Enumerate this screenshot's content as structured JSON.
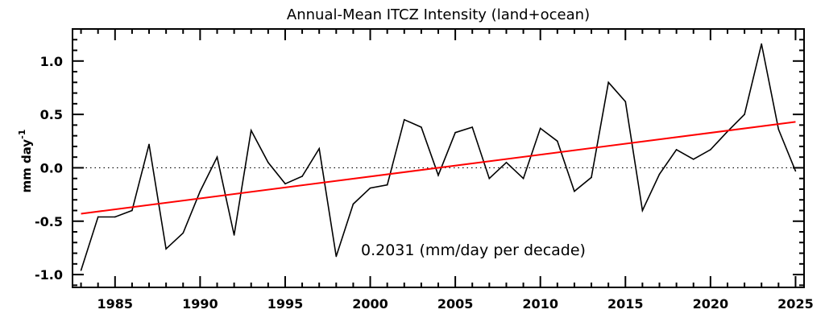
{
  "chart_data": {
    "type": "line",
    "title": "Annual-Mean ITCZ Intensity (land+ocean)",
    "xlabel": "",
    "ylabel": "mm day",
    "ylabel_superscript": "-1",
    "xlim": [
      1982.5,
      2025.5
    ],
    "ylim": [
      -1.12,
      1.3
    ],
    "xticks": [
      1985,
      1990,
      1995,
      2000,
      2005,
      2010,
      2015,
      2020,
      2025
    ],
    "yticks": [
      -1.0,
      -0.5,
      0.0,
      0.5,
      1.0
    ],
    "ytick_labels": [
      "-1.0",
      "-0.5",
      "0.0",
      "0.5",
      "1.0"
    ],
    "grid": false,
    "zero_line": "dotted",
    "x": [
      1983,
      1984,
      1985,
      1986,
      1987,
      1988,
      1989,
      1990,
      1991,
      1992,
      1993,
      1994,
      1995,
      1996,
      1997,
      1998,
      1999,
      2000,
      2001,
      2002,
      2003,
      2004,
      2005,
      2006,
      2007,
      2008,
      2009,
      2010,
      2011,
      2012,
      2013,
      2014,
      2015,
      2016,
      2017,
      2018,
      2019,
      2020,
      2021,
      2022,
      2023,
      2024,
      2025
    ],
    "series": [
      {
        "color": "#000000",
        "values": [
          -0.96,
          -0.46,
          -0.46,
          -0.4,
          0.22,
          -0.76,
          -0.61,
          -0.22,
          0.1,
          -0.63,
          0.35,
          0.05,
          -0.15,
          -0.08,
          0.18,
          -0.83,
          -0.34,
          -0.19,
          -0.16,
          0.45,
          0.38,
          -0.07,
          0.33,
          0.38,
          -0.1,
          0.05,
          -0.1,
          0.37,
          0.25,
          -0.22,
          -0.09,
          0.8,
          0.62,
          -0.4,
          -0.06,
          0.17,
          0.08,
          0.17,
          0.34,
          0.5,
          1.16,
          0.36,
          -0.03
        ]
      }
    ],
    "trend": {
      "color": "#ff0000",
      "x": [
        1983,
        2025
      ],
      "y": [
        -0.43,
        0.43
      ],
      "label": "0.2031 (mm/day per decade)"
    }
  }
}
